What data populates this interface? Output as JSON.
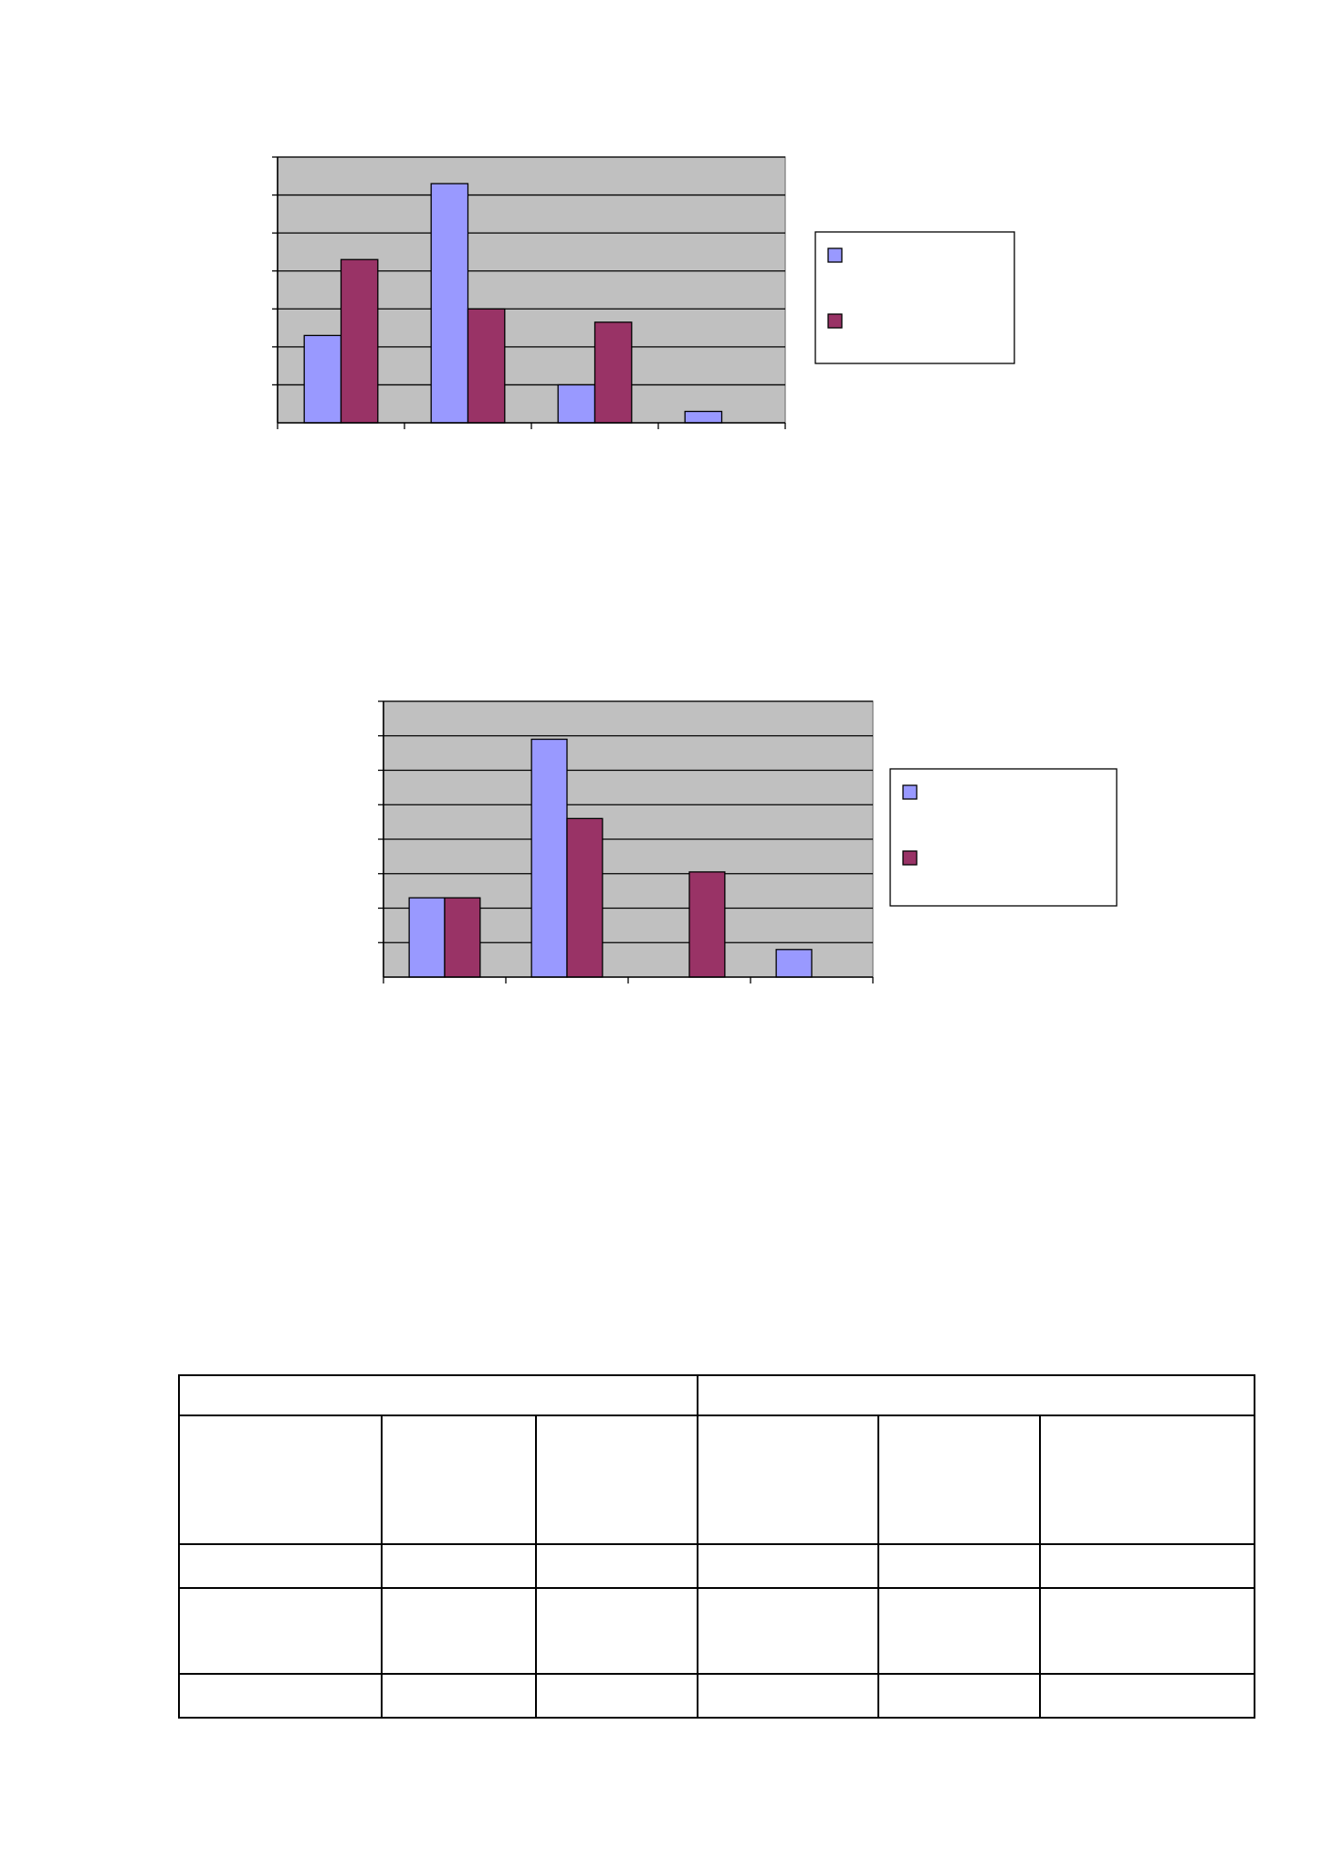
{
  "colors": {
    "series_a": "#9999ff",
    "series_b": "#993366",
    "plot_background": "#c0c0c0"
  },
  "chart_data": [
    {
      "type": "bar",
      "categories": [
        "",
        "",
        "",
        ""
      ],
      "series": [
        {
          "values": [
            2.3,
            6.3,
            1.0,
            0.3
          ]
        },
        {
          "values": [
            4.3,
            3.0,
            2.65,
            0
          ]
        }
      ],
      "ylim": [
        0,
        7
      ],
      "gridlines": [
        1,
        2,
        3,
        4,
        5,
        6,
        7
      ],
      "grid": true,
      "legend": "right",
      "legend_labels": [
        "",
        ""
      ]
    },
    {
      "type": "bar",
      "categories": [
        "",
        "",
        "",
        ""
      ],
      "series": [
        {
          "values": [
            2.3,
            6.9,
            0,
            0.8
          ]
        },
        {
          "values": [
            2.3,
            4.6,
            3.05,
            0
          ]
        }
      ],
      "ylim": [
        0,
        8
      ],
      "gridlines": [
        1,
        2,
        3,
        4,
        5,
        6,
        7,
        8
      ],
      "grid": true,
      "legend": "right",
      "legend_labels": [
        "",
        ""
      ]
    }
  ],
  "table": {
    "header_groups": [
      "",
      ""
    ],
    "rows": [
      [
        "",
        "",
        "",
        "",
        "",
        ""
      ],
      [
        "",
        "",
        "",
        "",
        "",
        ""
      ],
      [
        "",
        "",
        "",
        "",
        "",
        ""
      ],
      [
        "",
        "",
        "",
        "",
        "",
        ""
      ]
    ]
  }
}
